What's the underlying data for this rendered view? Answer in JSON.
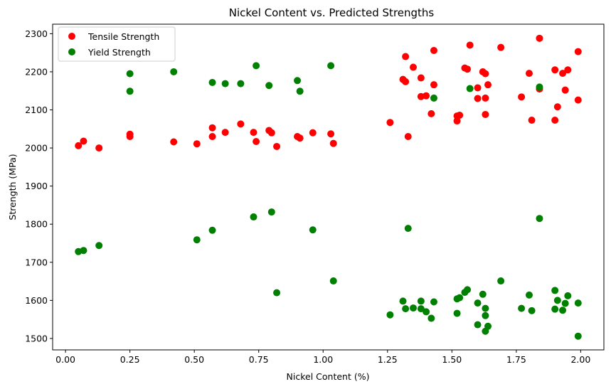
{
  "chart_data": {
    "type": "scatter",
    "title": "Nickel Content vs. Predicted Strengths",
    "xlabel": "Nickel Content (%)",
    "ylabel": "Strength (MPa)",
    "xlim": [
      -0.05,
      2.09
    ],
    "ylim": [
      1470,
      2325
    ],
    "xticks": [
      0.0,
      0.25,
      0.5,
      0.75,
      1.0,
      1.25,
      1.5,
      1.75,
      2.0
    ],
    "xtick_labels": [
      "0.00",
      "0.25",
      "0.50",
      "0.75",
      "1.00",
      "1.25",
      "1.50",
      "1.75",
      "2.00"
    ],
    "yticks": [
      1500,
      1600,
      1700,
      1800,
      1900,
      2000,
      2100,
      2200,
      2300
    ],
    "ytick_labels": [
      "1500",
      "1600",
      "1700",
      "1800",
      "1900",
      "2000",
      "2100",
      "2200",
      "2300"
    ],
    "grid": false,
    "legend_position": "upper-left",
    "series": [
      {
        "name": "Tensile Strength",
        "color": "#ff0000",
        "x": [
          0.05,
          0.07,
          0.13,
          0.25,
          0.25,
          0.42,
          0.51,
          0.57,
          0.57,
          0.62,
          0.68,
          0.73,
          0.74,
          0.79,
          0.8,
          0.82,
          0.9,
          0.91,
          0.96,
          1.03,
          1.04,
          1.26,
          1.31,
          1.32,
          1.32,
          1.33,
          1.35,
          1.38,
          1.38,
          1.4,
          1.42,
          1.43,
          1.43,
          1.52,
          1.52,
          1.53,
          1.55,
          1.56,
          1.57,
          1.6,
          1.6,
          1.62,
          1.63,
          1.63,
          1.63,
          1.64,
          1.69,
          1.77,
          1.8,
          1.81,
          1.84,
          1.84,
          1.9,
          1.9,
          1.91,
          1.93,
          1.94,
          1.95,
          1.99,
          1.99
        ],
        "y": [
          2006,
          2018,
          2000,
          2030,
          2036,
          2016,
          2011,
          2053,
          2030,
          2041,
          2063,
          2041,
          2017,
          2046,
          2040,
          2004,
          2030,
          2026,
          2040,
          2037,
          2012,
          2067,
          2180,
          2174,
          2240,
          2030,
          2212,
          2184,
          2135,
          2137,
          2090,
          2166,
          2256,
          2071,
          2084,
          2086,
          2210,
          2207,
          2270,
          2130,
          2158,
          2200,
          2195,
          2131,
          2088,
          2166,
          2264,
          2134,
          2196,
          2073,
          2155,
          2288,
          2073,
          2205,
          2108,
          2196,
          2152,
          2205,
          2126,
          2253
        ]
      },
      {
        "name": "Yield Strength",
        "color": "#008000",
        "x": [
          0.05,
          0.07,
          0.13,
          0.25,
          0.25,
          0.42,
          0.51,
          0.57,
          0.57,
          0.62,
          0.68,
          0.73,
          0.74,
          0.79,
          0.8,
          0.82,
          0.9,
          0.91,
          0.96,
          1.03,
          1.04,
          1.26,
          1.31,
          1.32,
          1.33,
          1.35,
          1.38,
          1.38,
          1.4,
          1.42,
          1.43,
          1.43,
          1.52,
          1.52,
          1.53,
          1.55,
          1.56,
          1.57,
          1.6,
          1.6,
          1.62,
          1.63,
          1.63,
          1.63,
          1.64,
          1.69,
          1.77,
          1.8,
          1.81,
          1.84,
          1.84,
          1.9,
          1.9,
          1.91,
          1.93,
          1.94,
          1.95,
          1.99,
          1.99
        ],
        "y": [
          1728,
          1731,
          1744,
          2149,
          2195,
          2200,
          1759,
          2172,
          1784,
          2169,
          2169,
          1819,
          2216,
          2164,
          1832,
          1620,
          2177,
          2149,
          1785,
          2216,
          1651,
          1562,
          1598,
          1578,
          1789,
          1580,
          1598,
          1578,
          1570,
          1553,
          1596,
          2131,
          1604,
          1566,
          1607,
          1621,
          1628,
          2156,
          1536,
          1593,
          1616,
          1579,
          1560,
          1519,
          1532,
          1651,
          1579,
          1614,
          1573,
          2160,
          1815,
          1577,
          1626,
          1600,
          1574,
          1592,
          1612,
          1506,
          1593
        ]
      }
    ]
  }
}
